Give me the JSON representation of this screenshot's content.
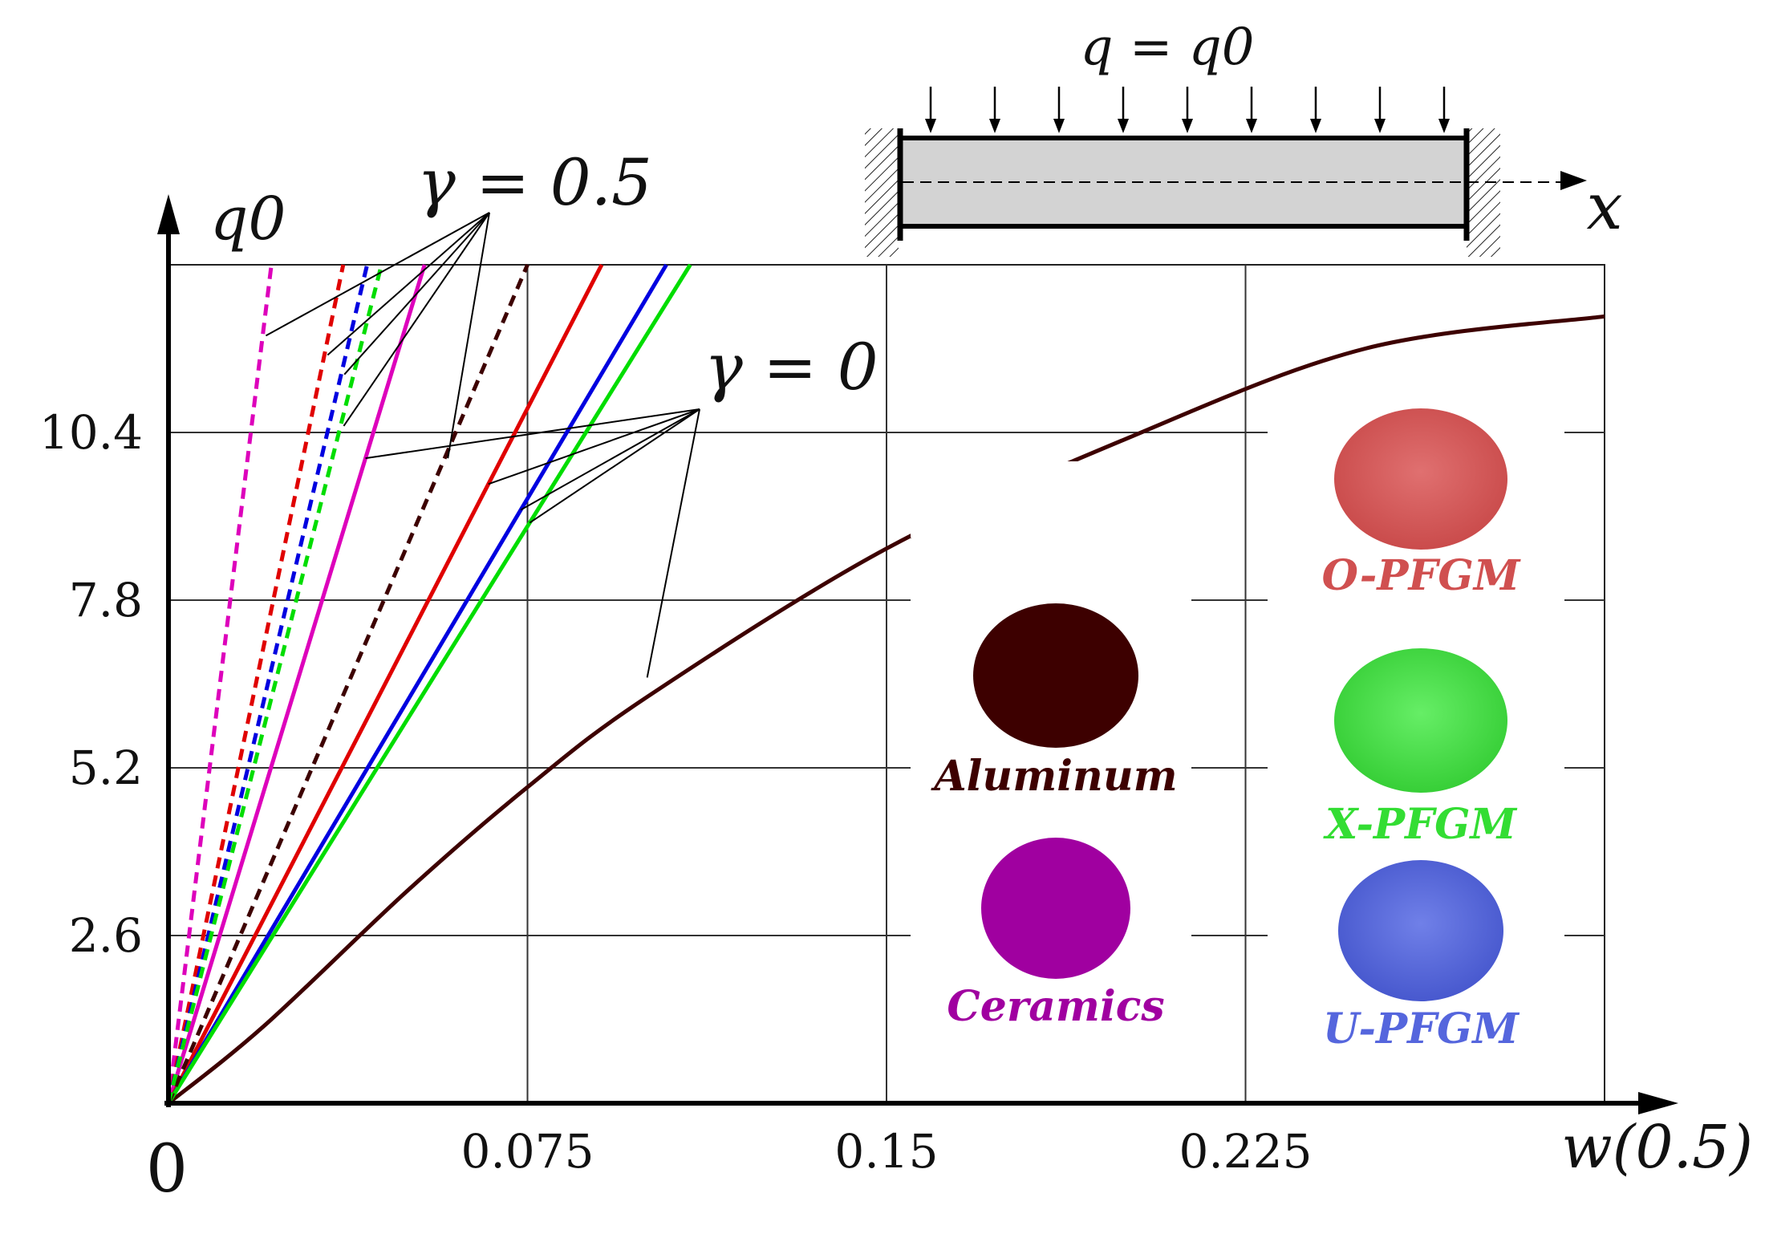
{
  "chart_data": {
    "type": "line",
    "title": "",
    "xlabel": "w(0.5)",
    "ylabel": "q0",
    "xlim": [
      0,
      0.3
    ],
    "ylim": [
      0,
      13
    ],
    "origin_label": "0",
    "xticks": [
      0.075,
      0.15,
      0.225
    ],
    "xtick_labels": [
      "0.075",
      "0.15",
      "0.225"
    ],
    "yticks": [
      2.6,
      5.2,
      7.8,
      10.4
    ],
    "ytick_labels": [
      "2.6",
      "5.2",
      "7.8",
      "10.4"
    ],
    "grid": true,
    "load_label": "q = q0",
    "beam_axis_label": "x",
    "annotations": [
      {
        "text": "γ = 0.5",
        "group": "gamma_05"
      },
      {
        "text": "γ = 0",
        "group": "gamma_0"
      }
    ],
    "series": [
      {
        "name": "Aluminum (γ = 0)",
        "color": "#3d0000",
        "style": "solid",
        "gamma": 0,
        "x": [
          0,
          0.02,
          0.05,
          0.075,
          0.1,
          0.15,
          0.2,
          0.25,
          0.3
        ],
        "y": [
          0,
          1.2,
          3.3,
          4.9,
          6.3,
          8.6,
          10.3,
          11.7,
          12.2
        ]
      },
      {
        "name": "Ceramics (γ = 0)",
        "color": "#dd00bb",
        "style": "solid",
        "gamma": 0,
        "x": [
          0,
          0.0535
        ],
        "y": [
          0,
          13
        ]
      },
      {
        "name": "O-PFGM (γ = 0)",
        "color": "#e00000",
        "style": "solid",
        "gamma": 0,
        "x": [
          0,
          0.0905
        ],
        "y": [
          0,
          13
        ]
      },
      {
        "name": "U-PFGM (γ = 0)",
        "color": "#0000e0",
        "style": "solid",
        "gamma": 0,
        "x": [
          0,
          0.104
        ],
        "y": [
          0,
          13
        ]
      },
      {
        "name": "X-PFGM (γ = 0)",
        "color": "#00dd00",
        "style": "solid",
        "gamma": 0,
        "x": [
          0,
          0.109
        ],
        "y": [
          0,
          13
        ]
      },
      {
        "name": "Aluminum (γ = 0.5)",
        "color": "#3d0000",
        "style": "dashed",
        "gamma": 0.5,
        "x": [
          0,
          0.075
        ],
        "y": [
          0,
          13
        ]
      },
      {
        "name": "Ceramics (γ = 0.5)",
        "color": "#dd00bb",
        "style": "dashed",
        "gamma": 0.5,
        "x": [
          0,
          0.0215
        ],
        "y": [
          0,
          13
        ]
      },
      {
        "name": "O-PFGM (γ = 0.5)",
        "color": "#e00000",
        "style": "dashed",
        "gamma": 0.5,
        "x": [
          0,
          0.0365
        ],
        "y": [
          0,
          13
        ]
      },
      {
        "name": "U-PFGM (γ = 0.5)",
        "color": "#0000e0",
        "style": "dashed",
        "gamma": 0.5,
        "x": [
          0,
          0.0415
        ],
        "y": [
          0,
          13
        ]
      },
      {
        "name": "X-PFGM (γ = 0.5)",
        "color": "#00dd00",
        "style": "dashed",
        "gamma": 0.5,
        "x": [
          0,
          0.0445
        ],
        "y": [
          0,
          13
        ]
      }
    ],
    "legend": [
      {
        "label": "Aluminum",
        "color": "#3d0000"
      },
      {
        "label": "Ceramics",
        "color": "#a000a0"
      },
      {
        "label": "O-PFGM",
        "color": "#d05050"
      },
      {
        "label": "X-PFGM",
        "color": "#33dd33"
      },
      {
        "label": "U-PFGM",
        "color": "#5566dd"
      }
    ]
  }
}
